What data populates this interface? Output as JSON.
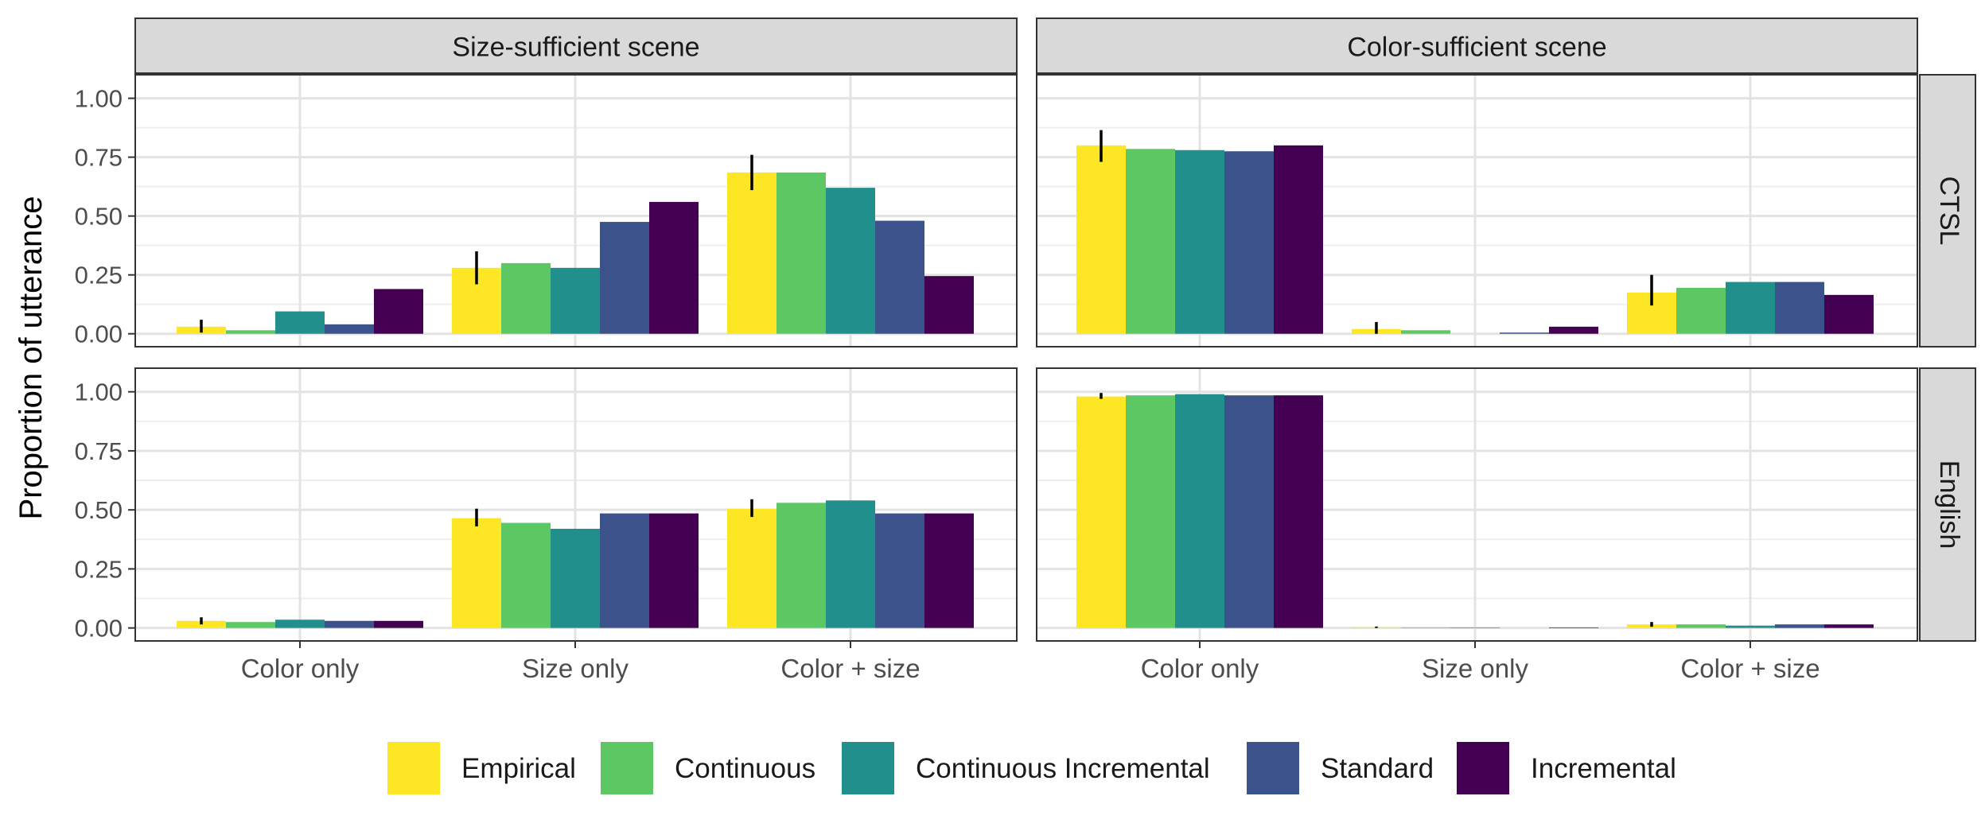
{
  "chart_data": {
    "type": "bar",
    "ylabel": "Proportion of utterance",
    "xlabel": "",
    "ylim": [
      0,
      1.1
    ],
    "yticks": [
      "0.00",
      "0.25",
      "0.50",
      "0.75",
      "1.00"
    ],
    "categories": [
      "Color only",
      "Size only",
      "Color + size"
    ],
    "columns": [
      "Size-sufficient scene",
      "Color-sufficient scene"
    ],
    "rows": [
      "CTSL",
      "English"
    ],
    "legend_position": "bottom",
    "grid": true,
    "series": [
      {
        "name": "Empirical",
        "color": "#FDE725"
      },
      {
        "name": "Continuous",
        "color": "#5DC863"
      },
      {
        "name": "Continuous Incremental",
        "color": "#21908C"
      },
      {
        "name": "Standard",
        "color": "#3B528B"
      },
      {
        "name": "Incremental",
        "color": "#440154"
      }
    ],
    "panels": [
      {
        "column": "Size-sufficient scene",
        "row": "CTSL",
        "values": [
          [
            0.03,
            0.015,
            0.095,
            0.04,
            0.19
          ],
          [
            0.28,
            0.3,
            0.28,
            0.475,
            0.56
          ],
          [
            0.685,
            0.685,
            0.62,
            0.48,
            0.245
          ]
        ],
        "error_bars": [
          [
            0.005,
            0.06
          ],
          [
            0.21,
            0.35
          ],
          [
            0.61,
            0.76
          ]
        ]
      },
      {
        "column": "Color-sufficient scene",
        "row": "CTSL",
        "values": [
          [
            0.8,
            0.785,
            0.78,
            0.775,
            0.8
          ],
          [
            0.02,
            0.015,
            0.0,
            0.005,
            0.03
          ],
          [
            0.175,
            0.195,
            0.22,
            0.22,
            0.165
          ]
        ],
        "error_bars": [
          [
            0.73,
            0.865
          ],
          [
            0.0,
            0.05
          ],
          [
            0.12,
            0.25
          ]
        ]
      },
      {
        "column": "Size-sufficient scene",
        "row": "English",
        "values": [
          [
            0.03,
            0.025,
            0.035,
            0.03,
            0.03
          ],
          [
            0.465,
            0.445,
            0.42,
            0.485,
            0.485
          ],
          [
            0.505,
            0.53,
            0.54,
            0.485,
            0.485
          ]
        ],
        "error_bars": [
          [
            0.015,
            0.045
          ],
          [
            0.43,
            0.505
          ],
          [
            0.47,
            0.545
          ]
        ]
      },
      {
        "column": "Color-sufficient scene",
        "row": "English",
        "values": [
          [
            0.98,
            0.985,
            0.99,
            0.985,
            0.985
          ],
          [
            0.003,
            0.002,
            0.002,
            0.0,
            0.002
          ],
          [
            0.015,
            0.015,
            0.01,
            0.015,
            0.015
          ]
        ],
        "error_bars": [
          [
            0.97,
            0.995
          ],
          [
            0.0,
            0.006
          ],
          [
            0.005,
            0.025
          ]
        ]
      }
    ]
  }
}
